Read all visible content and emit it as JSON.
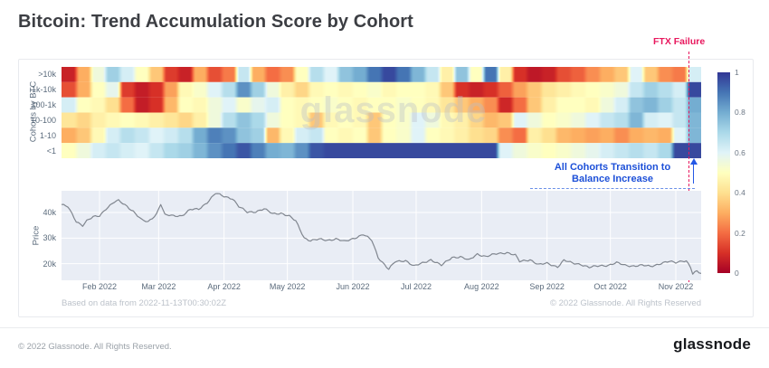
{
  "page": {
    "title": "Bitcoin: Trend Accumulation Score by Cohort",
    "footer_copyright": "© 2022 Glassnode. All Rights Reserved.",
    "logo": "glassnode"
  },
  "card": {
    "based_on": "Based on data from 2022-11-13T00:30:02Z",
    "copyright": "© 2022 Glassnode. All Rights Reserved",
    "watermark": "glassnode"
  },
  "annotations": {
    "ftx": {
      "label": "FTX Failure",
      "color": "#e8175d",
      "day": 297
    },
    "cohort_transition": {
      "line1": "All Cohorts Transition to",
      "line2": "Balance Increase",
      "color": "#1d50d8"
    }
  },
  "colors": {
    "price_line": "#80868f",
    "price_bg": "#e9edf5",
    "gridline": "#ffffff",
    "axis_text": "#5b6b7c"
  },
  "chart_data": [
    {
      "type": "heatmap",
      "title": "Trend Accumulation Score by Cohort",
      "ylabel": "Cohorts by BTC",
      "x_range": [
        "2022-01-14",
        "2022-11-13"
      ],
      "total_days": 303,
      "score_range": [
        0,
        1
      ],
      "colorbar_ticks": [
        1,
        0.8,
        0.6,
        0.4,
        0.2,
        0
      ],
      "colormap_stops": [
        {
          "t": 0.0,
          "c": "#a50026"
        },
        {
          "t": 0.1,
          "c": "#d73027"
        },
        {
          "t": 0.2,
          "c": "#f46d43"
        },
        {
          "t": 0.3,
          "c": "#fdae61"
        },
        {
          "t": 0.4,
          "c": "#fee090"
        },
        {
          "t": 0.5,
          "c": "#ffffbf"
        },
        {
          "t": 0.6,
          "c": "#e0f3f8"
        },
        {
          "t": 0.7,
          "c": "#abd9e9"
        },
        {
          "t": 0.8,
          "c": "#74add1"
        },
        {
          "t": 0.9,
          "c": "#4575b4"
        },
        {
          "t": 1.0,
          "c": "#313695"
        }
      ],
      "series": [
        {
          "name": ">10k",
          "values": [
            0.07,
            0.3,
            0.55,
            0.72,
            0.62,
            0.5,
            0.35,
            0.12,
            0.07,
            0.3,
            0.15,
            0.22,
            0.65,
            0.3,
            0.2,
            0.25,
            0.5,
            0.68,
            0.6,
            0.75,
            0.8,
            0.9,
            0.97,
            0.9,
            0.78,
            0.65,
            0.45,
            0.75,
            0.5,
            0.9,
            0.45,
            0.1,
            0.05,
            0.07,
            0.15,
            0.18,
            0.25,
            0.3,
            0.35,
            0.6,
            0.35,
            0.25,
            0.22,
            0.62
          ]
        },
        {
          "name": "1k-10k",
          "values": [
            0.15,
            0.3,
            0.5,
            0.58,
            0.12,
            0.06,
            0.1,
            0.28,
            0.48,
            0.52,
            0.6,
            0.68,
            0.85,
            0.72,
            0.55,
            0.45,
            0.38,
            0.48,
            0.5,
            0.48,
            0.5,
            0.52,
            0.48,
            0.5,
            0.5,
            0.48,
            0.35,
            0.1,
            0.07,
            0.1,
            0.18,
            0.28,
            0.35,
            0.42,
            0.45,
            0.48,
            0.5,
            0.52,
            0.55,
            0.65,
            0.72,
            0.68,
            0.62,
            0.97
          ]
        },
        {
          "name": "100-1k",
          "values": [
            0.62,
            0.5,
            0.48,
            0.4,
            0.2,
            0.06,
            0.1,
            0.32,
            0.5,
            0.48,
            0.55,
            0.6,
            0.52,
            0.58,
            0.62,
            0.5,
            0.48,
            0.5,
            0.52,
            0.5,
            0.48,
            0.5,
            0.5,
            0.52,
            0.5,
            0.48,
            0.42,
            0.35,
            0.3,
            0.25,
            0.08,
            0.2,
            0.35,
            0.45,
            0.5,
            0.5,
            0.48,
            0.55,
            0.62,
            0.75,
            0.78,
            0.72,
            0.65,
            0.8
          ]
        },
        {
          "name": "10-100",
          "values": [
            0.42,
            0.38,
            0.45,
            0.48,
            0.5,
            0.48,
            0.45,
            0.42,
            0.38,
            0.45,
            0.55,
            0.68,
            0.75,
            0.7,
            0.55,
            0.5,
            0.48,
            0.35,
            0.48,
            0.5,
            0.48,
            0.35,
            0.5,
            0.52,
            0.6,
            0.55,
            0.48,
            0.45,
            0.38,
            0.32,
            0.35,
            0.6,
            0.55,
            0.5,
            0.52,
            0.55,
            0.6,
            0.65,
            0.68,
            0.78,
            0.62,
            0.6,
            0.65,
            0.78
          ]
        },
        {
          "name": "1-10",
          "values": [
            0.3,
            0.35,
            0.48,
            0.62,
            0.68,
            0.65,
            0.6,
            0.63,
            0.68,
            0.8,
            0.88,
            0.85,
            0.75,
            0.72,
            0.32,
            0.48,
            0.62,
            0.65,
            0.5,
            0.48,
            0.5,
            0.35,
            0.5,
            0.52,
            0.6,
            0.5,
            0.48,
            0.45,
            0.4,
            0.38,
            0.25,
            0.2,
            0.45,
            0.4,
            0.32,
            0.3,
            0.28,
            0.3,
            0.25,
            0.3,
            0.32,
            0.3,
            0.6,
            0.78
          ]
        },
        {
          "name": "<1",
          "values": [
            0.5,
            0.55,
            0.62,
            0.65,
            0.62,
            0.6,
            0.65,
            0.7,
            0.72,
            0.78,
            0.85,
            0.9,
            0.95,
            0.88,
            0.8,
            0.78,
            0.85,
            0.95,
            0.97,
            0.97,
            0.97,
            0.97,
            0.97,
            0.97,
            0.97,
            0.97,
            0.97,
            0.97,
            0.97,
            0.97,
            0.6,
            0.55,
            0.52,
            0.5,
            0.52,
            0.55,
            0.58,
            0.62,
            0.65,
            0.68,
            0.65,
            0.7,
            0.97,
            0.97
          ]
        }
      ]
    },
    {
      "type": "line",
      "ylabel": "Price",
      "y_ticks": [
        {
          "label": "40k",
          "value": 40
        },
        {
          "label": "30k",
          "value": 30
        },
        {
          "label": "20k",
          "value": 20
        }
      ],
      "ylim": [
        13.5,
        48.5
      ],
      "x_ticks": [
        {
          "label": "Feb 2022",
          "day": 18
        },
        {
          "label": "Mar 2022",
          "day": 46
        },
        {
          "label": "Apr 2022",
          "day": 77
        },
        {
          "label": "May 2022",
          "day": 107
        },
        {
          "label": "Jun 2022",
          "day": 138
        },
        {
          "label": "Jul 2022",
          "day": 168
        },
        {
          "label": "Aug 2022",
          "day": 199
        },
        {
          "label": "Sep 2022",
          "day": 230
        },
        {
          "label": "Oct 2022",
          "day": 260
        },
        {
          "label": "Nov 2022",
          "day": 291
        }
      ],
      "total_days": 303,
      "points": [
        [
          0,
          43.1
        ],
        [
          3,
          42.2
        ],
        [
          7,
          36.5
        ],
        [
          10,
          35.0
        ],
        [
          12,
          36.8
        ],
        [
          15,
          38.2
        ],
        [
          18,
          38.7
        ],
        [
          21,
          41.5
        ],
        [
          25,
          44.1
        ],
        [
          27,
          44.6
        ],
        [
          31,
          42.5
        ],
        [
          34,
          40.5
        ],
        [
          38,
          37.0
        ],
        [
          41,
          36.3
        ],
        [
          45,
          39.5
        ],
        [
          47,
          43.4
        ],
        [
          49,
          39.0
        ],
        [
          53,
          38.7
        ],
        [
          57,
          38.8
        ],
        [
          61,
          41.1
        ],
        [
          65,
          41.3
        ],
        [
          69,
          44.0
        ],
        [
          73,
          47.5
        ],
        [
          77,
          46.3
        ],
        [
          81,
          45.5
        ],
        [
          84,
          42.3
        ],
        [
          88,
          40.1
        ],
        [
          92,
          40.4
        ],
        [
          96,
          41.4
        ],
        [
          100,
          39.5
        ],
        [
          104,
          39.8
        ],
        [
          108,
          38.5
        ],
        [
          111,
          36.6
        ],
        [
          115,
          30.1
        ],
        [
          118,
          29.0
        ],
        [
          122,
          29.5
        ],
        [
          126,
          29.2
        ],
        [
          130,
          29.7
        ],
        [
          134,
          28.6
        ],
        [
          138,
          29.8
        ],
        [
          143,
          31.4
        ],
        [
          147,
          29.1
        ],
        [
          150,
          22.5
        ],
        [
          155,
          17.8
        ],
        [
          158,
          20.7
        ],
        [
          163,
          21.3
        ],
        [
          167,
          19.0
        ],
        [
          171,
          20.2
        ],
        [
          175,
          21.6
        ],
        [
          180,
          19.3
        ],
        [
          185,
          22.5
        ],
        [
          189,
          22.7
        ],
        [
          193,
          21.3
        ],
        [
          197,
          23.8
        ],
        [
          201,
          22.8
        ],
        [
          206,
          23.8
        ],
        [
          211,
          24.4
        ],
        [
          215,
          23.3
        ],
        [
          217,
          20.8
        ],
        [
          222,
          21.6
        ],
        [
          226,
          19.6
        ],
        [
          230,
          20.1
        ],
        [
          235,
          18.8
        ],
        [
          238,
          21.3
        ],
        [
          242,
          20.2
        ],
        [
          246,
          19.8
        ],
        [
          250,
          18.5
        ],
        [
          255,
          19.2
        ],
        [
          259,
          19.4
        ],
        [
          263,
          20.3
        ],
        [
          267,
          19.4
        ],
        [
          271,
          19.1
        ],
        [
          275,
          19.3
        ],
        [
          279,
          19.0
        ],
        [
          284,
          20.1
        ],
        [
          288,
          20.8
        ],
        [
          291,
          20.5
        ],
        [
          294,
          21.2
        ],
        [
          296,
          21.0
        ],
        [
          298,
          18.5
        ],
        [
          299,
          15.9
        ],
        [
          301,
          17.0
        ],
        [
          303,
          16.3
        ]
      ]
    }
  ]
}
